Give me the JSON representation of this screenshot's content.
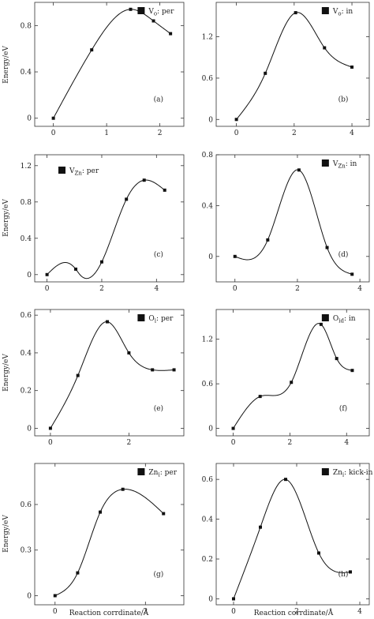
{
  "figure": {
    "ylabel": "Energy/eV",
    "xlabel": "Reaction corrdinate/Å"
  },
  "chart_data": [
    {
      "type": "line",
      "id": "a",
      "legend": "V_o: per",
      "legend_main": "V",
      "legend_sub": "o",
      "legend_tail": ": per",
      "panel_label": "(a)",
      "xlim": [
        -0.35,
        2.45
      ],
      "ylim": [
        -0.07,
        1.0
      ],
      "xticks": [
        0,
        1,
        2
      ],
      "xtick_labels": [
        "0",
        "1",
        "2"
      ],
      "yticks": [
        0,
        0.4,
        0.8
      ],
      "ytick_labels": [
        "0",
        "0.4",
        "0.8"
      ],
      "x": [
        0,
        0.72,
        1.45,
        1.88,
        2.2
      ],
      "y": [
        0,
        0.59,
        0.94,
        0.84,
        0.73
      ],
      "markers": [
        true,
        true,
        true,
        true,
        true
      ],
      "grid": false
    },
    {
      "type": "line",
      "id": "b",
      "legend": "V_o: in",
      "legend_main": "V",
      "legend_sub": "o",
      "legend_tail": ": in",
      "panel_label": "(b)",
      "xlim": [
        -0.7,
        4.6
      ],
      "ylim": [
        -0.1,
        1.7
      ],
      "xticks": [
        0,
        2,
        4
      ],
      "xtick_labels": [
        "0",
        "2",
        "4"
      ],
      "yticks": [
        0,
        0.6,
        1.2
      ],
      "ytick_labels": [
        "0",
        "0.6",
        "1.2"
      ],
      "x": [
        0,
        1.0,
        2.05,
        3.05,
        4.0
      ],
      "y": [
        0,
        0.67,
        1.55,
        1.04,
        0.76
      ],
      "markers": [
        true,
        true,
        true,
        true,
        true
      ],
      "grid": false
    },
    {
      "type": "line",
      "id": "c",
      "legend": "V_Zn: per",
      "legend_main": "V",
      "legend_sub": "Zn",
      "legend_tail": ": per",
      "panel_label": "(c)",
      "xlim": [
        -0.45,
        5.0
      ],
      "ylim": [
        -0.08,
        1.32
      ],
      "xticks": [
        0,
        2,
        4
      ],
      "xtick_labels": [
        "0",
        "2",
        "4"
      ],
      "yticks": [
        0,
        0.4,
        0.8,
        1.2
      ],
      "ytick_labels": [
        "0",
        "0.4",
        "0.8",
        "1.2"
      ],
      "x": [
        0,
        0.75,
        1.05,
        1.2,
        2.0,
        2.9,
        3.55,
        4.3
      ],
      "y": [
        0,
        0.13,
        0.06,
        0.0,
        0.14,
        0.83,
        1.04,
        0.93
      ],
      "markers": [
        true,
        false,
        true,
        false,
        true,
        true,
        true,
        true
      ],
      "grid": false
    },
    {
      "type": "line",
      "id": "d",
      "legend": "V_Zn: in",
      "legend_main": "V",
      "legend_sub": "Zn",
      "legend_tail": ": in",
      "panel_label": "(d)",
      "xlim": [
        -0.6,
        4.3
      ],
      "ylim": [
        -0.2,
        0.8
      ],
      "xticks": [
        0,
        2,
        4
      ],
      "xtick_labels": [
        "0",
        "2",
        "4"
      ],
      "yticks": [
        0,
        0.4,
        0.8
      ],
      "ytick_labels": [
        "0",
        "0.4",
        "0.8"
      ],
      "x": [
        0,
        1.05,
        2.05,
        2.95,
        3.75
      ],
      "y": [
        0,
        0.13,
        0.68,
        0.07,
        -0.14
      ],
      "markers": [
        true,
        true,
        true,
        true,
        true
      ],
      "grid": false
    },
    {
      "type": "line",
      "id": "e",
      "legend": "O_i: per",
      "legend_main": "O",
      "legend_sub": "i",
      "legend_tail": ": per",
      "panel_label": "(e)",
      "xlim": [
        -0.4,
        3.4
      ],
      "ylim": [
        -0.04,
        0.63
      ],
      "xticks": [
        0,
        2
      ],
      "xtick_labels": [
        "0",
        "2"
      ],
      "yticks": [
        0,
        0.2,
        0.4,
        0.6
      ],
      "ytick_labels": [
        "0",
        "0.2",
        "0.4",
        "0.6"
      ],
      "x": [
        0,
        0.7,
        1.45,
        2.0,
        2.6,
        3.15
      ],
      "y": [
        0,
        0.28,
        0.565,
        0.4,
        0.31,
        0.31
      ],
      "markers": [
        true,
        true,
        true,
        true,
        true,
        true
      ],
      "grid": false
    },
    {
      "type": "line",
      "id": "f",
      "legend": "O_id: in",
      "legend_main": "O",
      "legend_sub": "id",
      "legend_tail": ": in",
      "panel_label": "(f)",
      "xlim": [
        -0.6,
        4.8
      ],
      "ylim": [
        -0.1,
        1.6
      ],
      "xticks": [
        0,
        2,
        4
      ],
      "xtick_labels": [
        "0",
        "2",
        "4"
      ],
      "yticks": [
        0,
        0.6,
        1.2
      ],
      "ytick_labels": [
        "0",
        "0.6",
        "1.2"
      ],
      "x": [
        0,
        0.95,
        2.05,
        3.1,
        3.65,
        4.2
      ],
      "y": [
        0,
        0.43,
        0.62,
        1.4,
        0.94,
        0.78
      ],
      "markers": [
        true,
        true,
        true,
        true,
        true,
        true
      ],
      "grid": false
    },
    {
      "type": "line",
      "id": "g",
      "legend": "Zn_i: per",
      "legend_main": "Zn",
      "legend_sub": "i",
      "legend_tail": ": per",
      "panel_label": "(g)",
      "xlim": [
        -0.45,
        2.85
      ],
      "ylim": [
        -0.06,
        0.87
      ],
      "xticks": [
        0,
        2
      ],
      "xtick_labels": [
        "0",
        "2"
      ],
      "yticks": [
        0,
        0.3,
        0.6
      ],
      "ytick_labels": [
        "0",
        "0.3",
        "0.6"
      ],
      "x": [
        0,
        0.5,
        1.0,
        1.5,
        2.4
      ],
      "y": [
        0,
        0.15,
        0.55,
        0.7,
        0.54
      ],
      "markers": [
        true,
        true,
        true,
        true,
        true
      ],
      "grid": false
    },
    {
      "type": "line",
      "id": "h",
      "legend": "Zn_i: kick-in",
      "legend_main": "Zn",
      "legend_sub": "i",
      "legend_tail": ": kick-in",
      "panel_label": "(h)",
      "xlim": [
        -0.55,
        4.3
      ],
      "ylim": [
        -0.03,
        0.68
      ],
      "xticks": [
        0,
        2,
        4
      ],
      "xtick_labels": [
        "0",
        "2",
        "4"
      ],
      "yticks": [
        0,
        0.2,
        0.4,
        0.6
      ],
      "ytick_labels": [
        "0",
        "0.2",
        "0.4",
        "0.6"
      ],
      "x": [
        0,
        0.85,
        1.65,
        2.7,
        3.7
      ],
      "y": [
        0,
        0.36,
        0.6,
        0.23,
        0.135
      ],
      "markers": [
        true,
        true,
        true,
        true,
        true
      ],
      "grid": false
    }
  ]
}
